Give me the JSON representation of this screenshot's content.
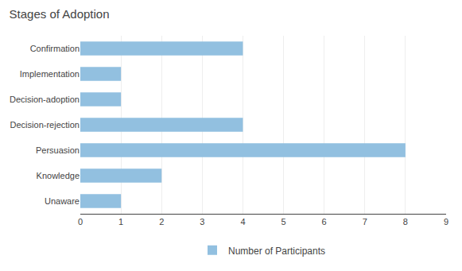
{
  "chart_data": {
    "type": "bar",
    "orientation": "horizontal",
    "title": "Stages of Adoption",
    "categories": [
      "Unaware",
      "Knowledge",
      "Persuasion",
      "Decision-rejection",
      "Decision-adoption",
      "Implementation",
      "Confirmation"
    ],
    "series": [
      {
        "name": "Number of Participants",
        "color": "#92C0E0",
        "values": [
          1,
          2,
          8,
          4,
          1,
          1,
          4
        ]
      }
    ],
    "xlim": [
      0,
      9
    ],
    "xticks": [
      0,
      1,
      2,
      3,
      4,
      5,
      6,
      7,
      8,
      9
    ],
    "grid": true,
    "legend": "bottom"
  }
}
